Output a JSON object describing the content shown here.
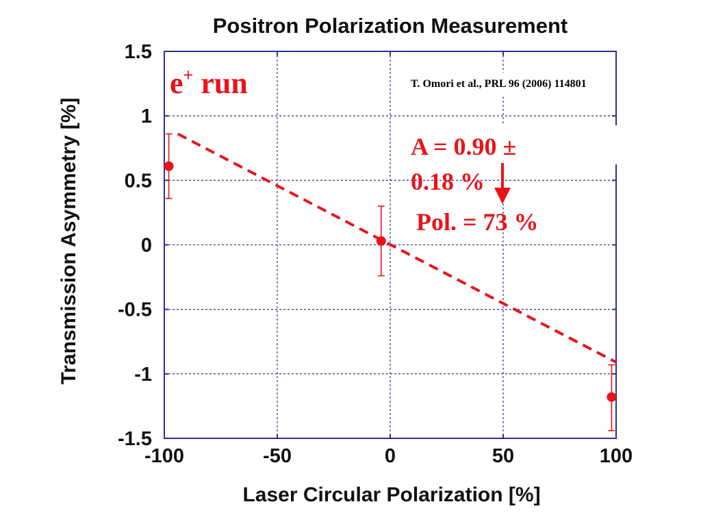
{
  "chart_data": {
    "type": "scatter",
    "title": "Positron Polarization Measurement",
    "xlabel": "Laser Circular Polarization [%]",
    "ylabel": "Transmission Asymmetry [%]",
    "xlim": [
      -100,
      100
    ],
    "ylim": [
      -1.5,
      1.5
    ],
    "xticks": [
      -100,
      -50,
      0,
      50,
      100
    ],
    "yticks": [
      1.5,
      1,
      0.5,
      0,
      -0.5,
      -1,
      -1.5
    ],
    "xtick_labels": [
      "-100",
      "-50",
      "0",
      "50",
      "100"
    ],
    "ytick_labels": [
      "1.5",
      "1",
      "0.5",
      "0",
      "-0.5",
      "-1",
      "-1.5"
    ],
    "grid": true,
    "points": [
      {
        "x": -98,
        "y": 0.61,
        "yerr_low": 0.36,
        "yerr_high": 0.86
      },
      {
        "x": -4,
        "y": 0.03,
        "yerr_low": -0.24,
        "yerr_high": 0.3
      },
      {
        "x": 98,
        "y": -1.18,
        "yerr_low": -1.44,
        "yerr_high": -0.93
      }
    ],
    "fit_line": {
      "x": [
        -94,
        100
      ],
      "y": [
        0.86,
        -0.91
      ]
    },
    "annotations": {
      "run_base": "e",
      "run_sup": "+",
      "run_suffix": " run",
      "citation": "T. Omori et  al.,  PRL 96 (2006) 114801",
      "asym_line1": "A = 0.90 ±",
      "asym_line2": "0.18 %",
      "pol_line": "Pol. =  73 %"
    },
    "colors": {
      "data": "#e8141a",
      "axis": "#2b2f8f",
      "grid": "#3a3f9a"
    }
  }
}
